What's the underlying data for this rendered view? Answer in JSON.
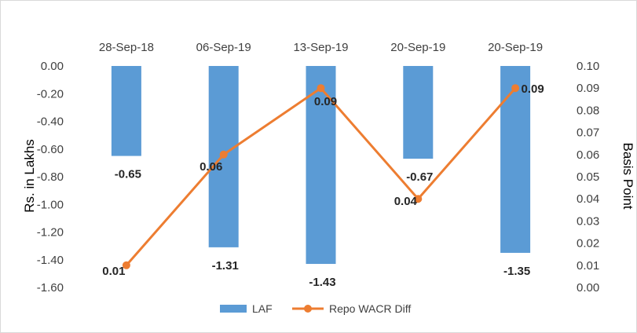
{
  "chart_data": {
    "type": "bar",
    "categories": [
      "28-Sep-18",
      "06-Sep-19",
      "13-Sep-19",
      "20-Sep-19",
      "20-Sep-19"
    ],
    "series": [
      {
        "name": "LAF",
        "type": "bar",
        "axis": "left",
        "values": [
          -0.65,
          -1.31,
          -1.43,
          -0.67,
          -1.35
        ],
        "labels": [
          "-0.65",
          "-1.31",
          "-1.43",
          "-0.67",
          "-1.35"
        ],
        "color": "#5b9bd5"
      },
      {
        "name": "Repo WACR Diff",
        "type": "line",
        "axis": "right",
        "values": [
          0.01,
          0.06,
          0.09,
          0.04,
          0.09
        ],
        "labels": [
          "0.01",
          "0.06",
          "0.09",
          "0.04",
          "0.09"
        ],
        "color": "#ed7d31"
      }
    ],
    "ylabel": "Rs. in Lakhs",
    "ylabel_right": "Basis Point",
    "ylim": [
      -1.6,
      0
    ],
    "ylim_right": [
      0,
      0.1
    ],
    "yticks": [
      "0.00",
      "-0.20",
      "-0.40",
      "-0.60",
      "-0.80",
      "-1.00",
      "-1.20",
      "-1.40",
      "-1.60"
    ],
    "yticks_right": [
      "0.10",
      "0.09",
      "0.08",
      "0.07",
      "0.06",
      "0.05",
      "0.04",
      "0.03",
      "0.02",
      "0.01",
      "0.00"
    ],
    "x_axis_position": "top",
    "grid": false,
    "legend_position": "bottom"
  }
}
